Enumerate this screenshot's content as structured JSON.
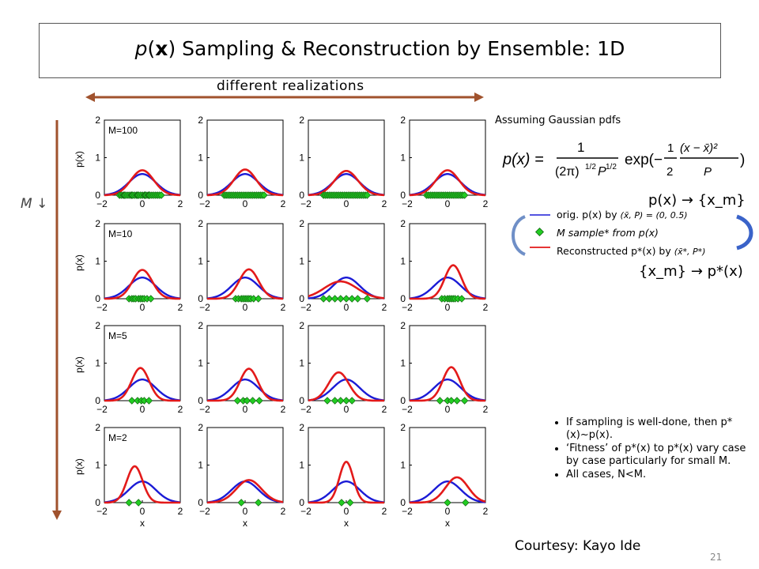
{
  "slide": {
    "title": "p(x) Sampling & Reconstruction by Ensemble: 1D",
    "title_parts": {
      "p": "p",
      "open": "(",
      "x": "x",
      "rest": ") Sampling & Reconstruction by Ensemble: 1D"
    },
    "realizations_label": "different realizations",
    "m_axis_label": "M ↓",
    "assume_text": "Assuming Gaussian pdfs",
    "eq_sample": "p(x) → {x_m}",
    "eq_recon": "{x_m} → p*(x)",
    "legend": {
      "orig": "orig. p(x) by",
      "orig_params": "(x̄, P) = (0, 0.5)",
      "samples": "M sample* from p(x)",
      "recon": "Reconstructed p*(x) by",
      "recon_params": "(x̄*, P*)"
    },
    "bullets": [
      "If sampling is well-done, then p*(x)~p(x).",
      "‘Fitness’ of p*(x) to p*(x) vary case by case particularly for small M.",
      "All cases, N<M."
    ],
    "courtesy": "Courtesy: Kayo Ide",
    "page_number": "21",
    "colors": {
      "orig": "#1b1bd6",
      "recon": "#e31a1a",
      "sample": "#22cc22",
      "arrow": "#a0522d"
    }
  },
  "chart_data": {
    "type": "line",
    "xlim": [
      -2,
      2
    ],
    "ylim": [
      0,
      2
    ],
    "xticks": [
      "−2",
      "0",
      "2"
    ],
    "yticks": [
      "0",
      "1",
      "2"
    ],
    "xlabel": "x",
    "ylabel": "p(x)",
    "orig": {
      "mean": 0,
      "var": 0.5
    },
    "rows": [
      {
        "M_label": "M=100",
        "panels": [
          {
            "mean": 0.0,
            "var": 0.36,
            "samples": [
              -1.2,
              -1.1,
              -1.0,
              -0.95,
              -0.9,
              -0.8,
              -0.7,
              -0.6,
              -0.55,
              -0.5,
              -0.4,
              -0.3,
              -0.25,
              -0.2,
              -0.1,
              0.0,
              0.1,
              0.15,
              0.2,
              0.3,
              0.35,
              0.4,
              0.5,
              0.6,
              0.7,
              0.8,
              0.9,
              1.0
            ]
          },
          {
            "mean": 0.0,
            "var": 0.34,
            "samples": [
              -1.1,
              -1.0,
              -0.9,
              -0.8,
              -0.7,
              -0.6,
              -0.5,
              -0.4,
              -0.3,
              -0.2,
              -0.1,
              0.0,
              0.1,
              0.2,
              0.3,
              0.4,
              0.5,
              0.6,
              0.7,
              0.8,
              0.9,
              1.0
            ]
          },
          {
            "mean": 0.0,
            "var": 0.38,
            "samples": [
              -1.2,
              -1.1,
              -1.0,
              -0.9,
              -0.8,
              -0.7,
              -0.6,
              -0.5,
              -0.4,
              -0.3,
              -0.2,
              -0.1,
              0.0,
              0.1,
              0.2,
              0.3,
              0.4,
              0.5,
              0.6,
              0.7,
              0.8,
              0.9,
              1.0,
              1.1
            ]
          },
          {
            "mean": 0.0,
            "var": 0.36,
            "samples": [
              -1.1,
              -1.0,
              -0.9,
              -0.8,
              -0.7,
              -0.6,
              -0.5,
              -0.4,
              -0.3,
              -0.2,
              -0.1,
              0.0,
              0.1,
              0.2,
              0.3,
              0.4,
              0.5,
              0.6,
              0.7,
              0.8,
              0.9
            ]
          }
        ]
      },
      {
        "M_label": "M=10",
        "panels": [
          {
            "mean": 0.0,
            "var": 0.27,
            "samples": [
              -0.7,
              -0.55,
              -0.45,
              -0.35,
              -0.2,
              -0.1,
              0.0,
              0.1,
              0.25,
              0.45
            ]
          },
          {
            "mean": 0.2,
            "var": 0.26,
            "samples": [
              -0.5,
              -0.35,
              -0.2,
              -0.1,
              0.0,
              0.1,
              0.2,
              0.3,
              0.45,
              0.7
            ]
          },
          {
            "mean": -0.3,
            "var": 0.75,
            "samples": [
              -1.2,
              -0.9,
              -0.6,
              -0.3,
              0.0,
              0.3,
              0.6,
              1.1
            ]
          },
          {
            "mean": 0.3,
            "var": 0.2,
            "samples": [
              -0.3,
              -0.15,
              0.0,
              0.1,
              0.2,
              0.3,
              0.4,
              0.55,
              0.75
            ]
          }
        ]
      },
      {
        "M_label": "M=5",
        "panels": [
          {
            "mean": -0.1,
            "var": 0.21,
            "samples": [
              -0.55,
              -0.25,
              -0.05,
              0.1,
              0.35
            ]
          },
          {
            "mean": 0.2,
            "var": 0.22,
            "samples": [
              -0.4,
              -0.1,
              0.1,
              0.4,
              0.75
            ]
          },
          {
            "mean": -0.4,
            "var": 0.28,
            "samples": [
              -1.0,
              -0.6,
              -0.3,
              0.0,
              0.3
            ]
          },
          {
            "mean": 0.2,
            "var": 0.2,
            "samples": [
              -0.4,
              0.0,
              0.2,
              0.5,
              0.9
            ]
          }
        ]
      },
      {
        "M_label": "M=2",
        "panels": [
          {
            "mean": -0.4,
            "var": 0.17,
            "samples": [
              -0.7,
              -0.2
            ]
          },
          {
            "mean": 0.2,
            "var": 0.44,
            "samples": [
              -0.2,
              0.7
            ]
          },
          {
            "mean": 0.0,
            "var": 0.135,
            "samples": [
              -0.25,
              0.2
            ]
          },
          {
            "mean": 0.5,
            "var": 0.35,
            "samples": [
              0.0,
              0.95
            ]
          }
        ]
      }
    ]
  }
}
